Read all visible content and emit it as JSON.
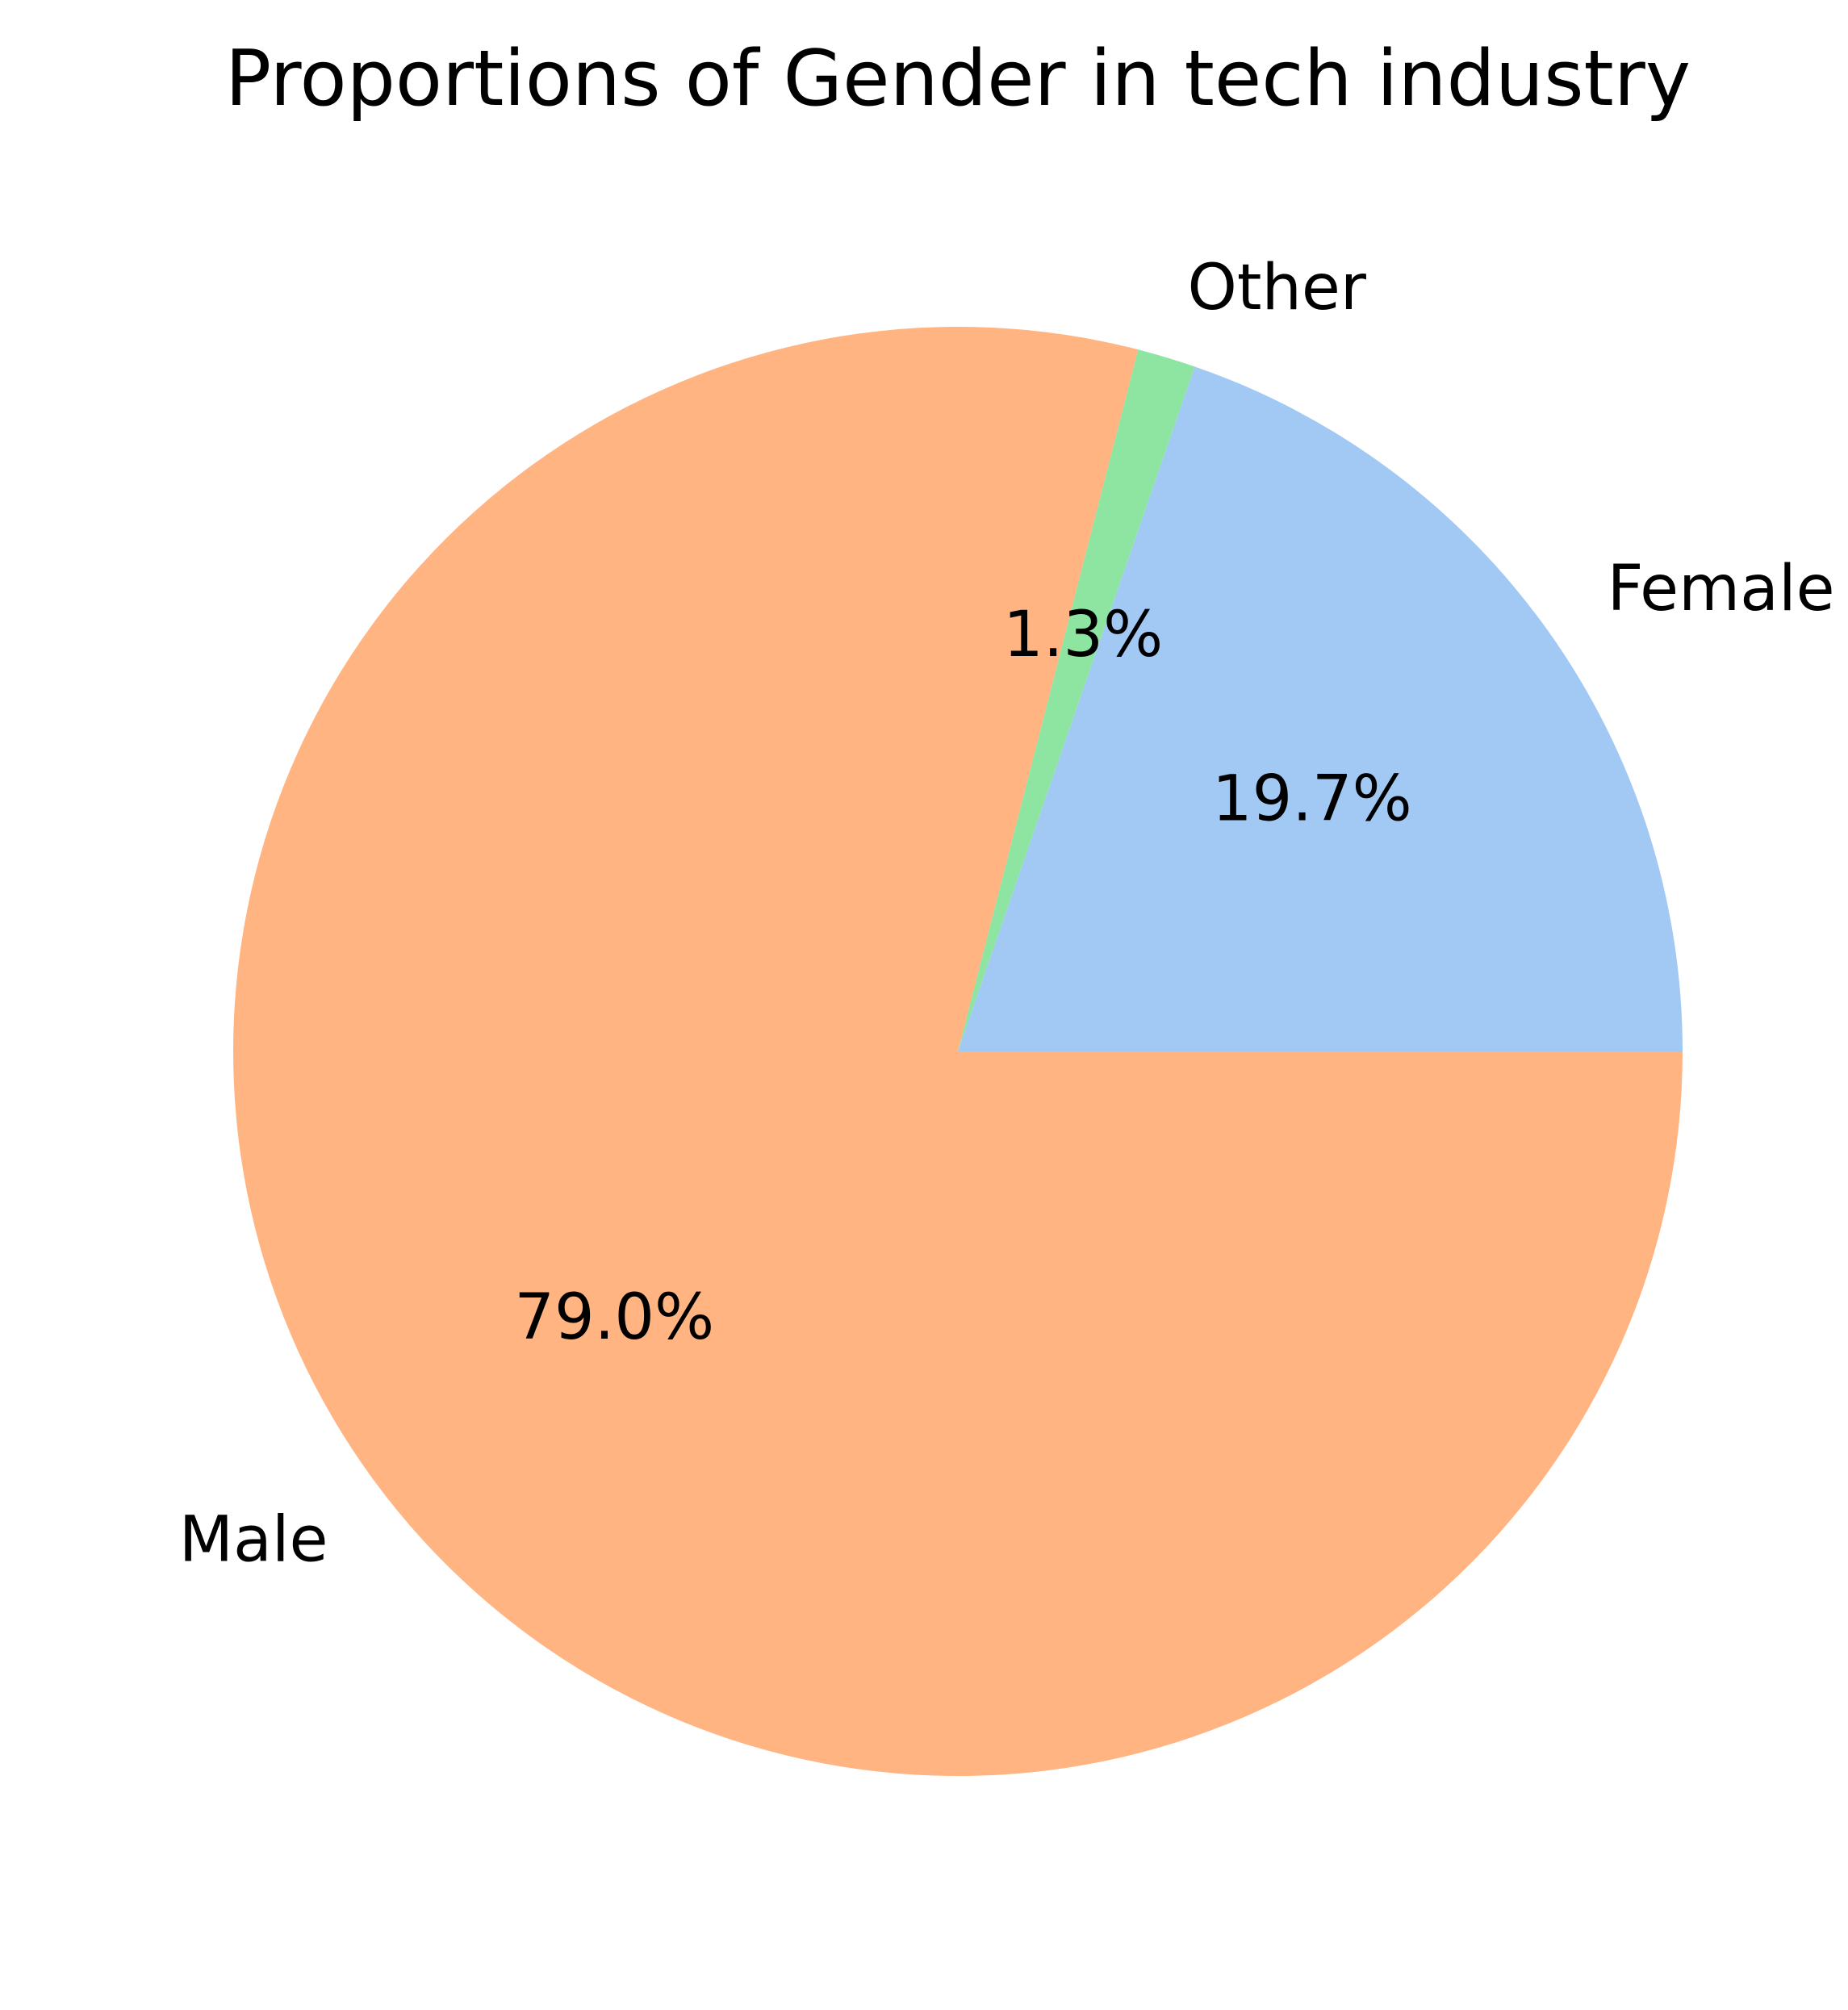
{
  "chart_data": {
    "type": "pie",
    "title": "Proportions of Gender in tech industry",
    "slices": [
      {
        "label": "Female",
        "value": 19.7,
        "pct_label": "19.7%",
        "color": "#a1c9f4"
      },
      {
        "label": "Other",
        "value": 1.3,
        "pct_label": "1.3%",
        "color": "#8de5a1"
      },
      {
        "label": "Male",
        "value": 79.0,
        "pct_label": "79.0%",
        "color": "#ffb482"
      }
    ],
    "start_angle_deg": 0,
    "direction": "counterclockwise",
    "legend": "none"
  }
}
